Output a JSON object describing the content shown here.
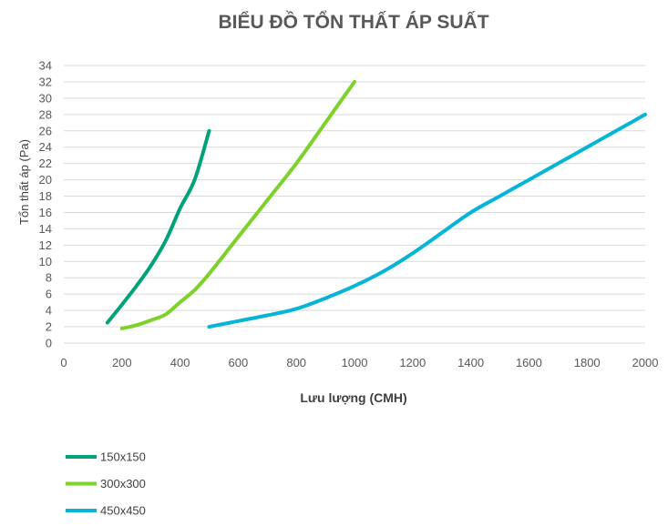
{
  "chart_data": {
    "type": "line",
    "title": "BIỂU ĐỒ TỔN THẤT ÁP SUẤT",
    "xlabel": "Lưu lượng (CMH)",
    "ylabel": "Tổn thất áp (Pa)",
    "xlim": [
      0,
      2000
    ],
    "ylim": [
      0,
      34
    ],
    "xticks": [
      0,
      200,
      400,
      600,
      800,
      1000,
      1200,
      1400,
      1600,
      1800,
      2000
    ],
    "yticks": [
      0,
      2,
      4,
      6,
      8,
      10,
      12,
      14,
      16,
      18,
      20,
      22,
      24,
      26,
      28,
      30,
      32,
      34
    ],
    "grid": true,
    "legend_position": "bottom-left",
    "series": [
      {
        "name": "150x150",
        "color": "#00a27a",
        "x": [
          150,
          200,
          250,
          300,
          350,
          400,
          450,
          500
        ],
        "y": [
          2.5,
          4.7,
          7.0,
          9.5,
          12.5,
          16.5,
          20.0,
          26.0
        ]
      },
      {
        "name": "300x300",
        "color": "#7dd12b",
        "x": [
          200,
          250,
          300,
          350,
          400,
          450,
          500,
          600,
          700,
          800,
          900,
          1000
        ],
        "y": [
          1.8,
          2.2,
          2.8,
          3.5,
          5.0,
          6.5,
          8.5,
          13.0,
          17.5,
          22.0,
          27.0,
          32.0
        ]
      },
      {
        "name": "450x450",
        "color": "#06b4d8",
        "x": [
          500,
          600,
          700,
          800,
          900,
          1000,
          1100,
          1200,
          1300,
          1400,
          1500,
          1600,
          1700,
          1800,
          1900,
          2000
        ],
        "y": [
          2.0,
          2.7,
          3.4,
          4.2,
          5.5,
          7.0,
          8.8,
          11.0,
          13.5,
          16.0,
          18.0,
          20.0,
          22.0,
          24.0,
          26.0,
          28.0
        ]
      }
    ]
  }
}
